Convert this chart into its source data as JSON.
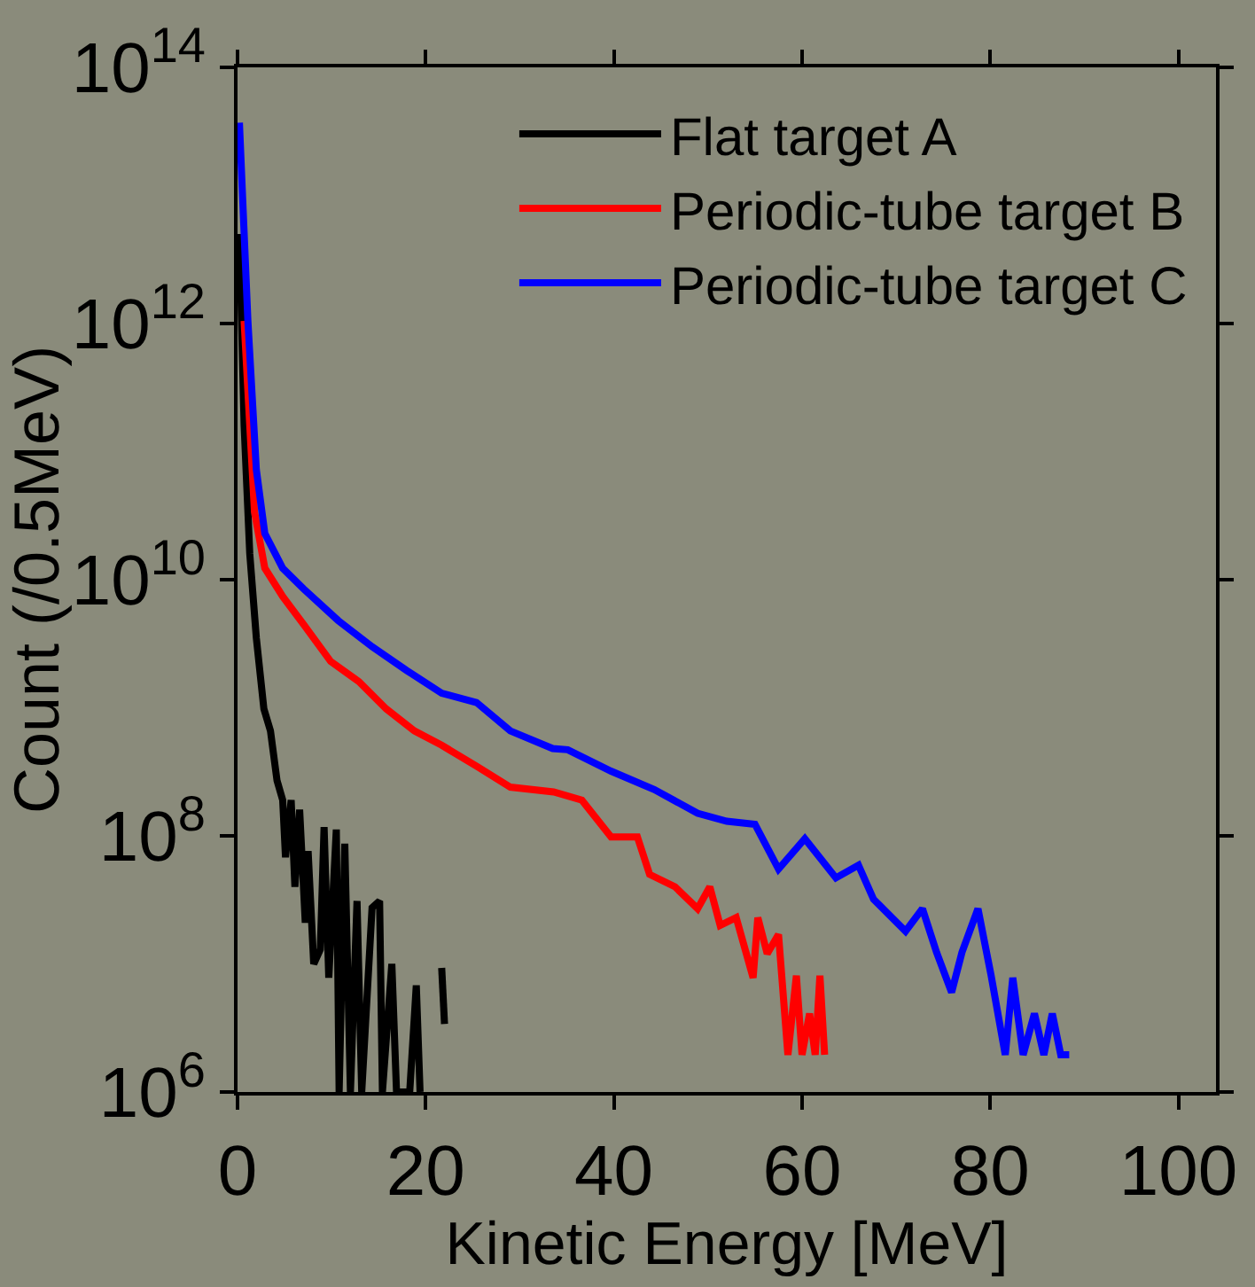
{
  "chart_data": {
    "type": "line",
    "xlabel": "Kinetic Energy [MeV]",
    "ylabel": "Count (/0.5MeV)",
    "xlim": [
      0,
      104
    ],
    "xticks": [
      0,
      20,
      40,
      60,
      80,
      100
    ],
    "ylim": [
      1000000.0,
      100000000000000.0
    ],
    "yticks": [
      {
        "value": 1000000.0,
        "label": "10$^{6}$"
      },
      {
        "value": 100000000.0,
        "label": "10$^{8}$"
      },
      {
        "value": 10000000000.0,
        "label": "10$^{10}$"
      },
      {
        "value": 1000000000000.0,
        "label": "10$^{12}$"
      },
      {
        "value": 100000000000000.0,
        "label": "10$^{14}$"
      }
    ],
    "log": "y",
    "grid": false,
    "legend": "top right",
    "marker": "none",
    "line_style": "solid",
    "series": [
      {
        "name": "Flat target A",
        "color": "#000000",
        "x": [
          0.2,
          0.7,
          1.3,
          2.0,
          2.8,
          3.5,
          4.2,
          4.8,
          5.1,
          5.7,
          6.1,
          6.6,
          7.2,
          7.5,
          8.1,
          8.8,
          9.2,
          9.7,
          10.5,
          10.8,
          11.4,
          12.0,
          12.7,
          13.2,
          14.3,
          15.1,
          15.4,
          16.4,
          16.9,
          18.3,
          19.0,
          19.4,
          20.5,
          21.7,
          22.0
        ],
        "values": [
          5000000000000.0,
          160000000000.0,
          16000000000.0,
          3500000000.0,
          980000000.0,
          660000000.0,
          270000000.0,
          190000000.0,
          68000000.0,
          190000000.0,
          40000000.0,
          160000000.0,
          21000000.0,
          76000000.0,
          10000000.0,
          13000000.0,
          117000000.0,
          7800000.0,
          112000000.0,
          1000000.0,
          87000000.0,
          1000000.0,
          31000000.0,
          1000000.0,
          27500000.0,
          31000000.0,
          1000000.0,
          10000000.0,
          1000000.0,
          1000000.0,
          6800000.0,
          1000000.0,
          null,
          9300000.0,
          3400000.0
        ]
      },
      {
        "name": "Periodic-tube target B",
        "color": "#ff0000",
        "x": [
          0.7,
          1.8,
          2.9,
          4.8,
          7.0,
          9.9,
          12.9,
          15.8,
          18.8,
          21.7,
          25.4,
          29.0,
          33.6,
          36.6,
          39.7,
          42.5,
          43.8,
          46.5,
          48.9,
          50.2,
          51.3,
          53.0,
          54.8,
          55.3,
          56.3,
          57.5,
          58.5,
          59.4,
          60.0,
          60.8,
          61.4,
          61.9,
          62.4
        ],
        "values": [
          1050000000000.0,
          34000000000.0,
          12300000000.0,
          7400000000.0,
          4500000000.0,
          2300000000.0,
          1600000000.0,
          980000000.0,
          660000000.0,
          510000000.0,
          350000000.0,
          240000000.0,
          220000000.0,
          190000000.0,
          98000000.0,
          98000000.0,
          50000000.0,
          40000000.0,
          27000000.0,
          40000000.0,
          20000000.0,
          23000000.0,
          7800000.0,
          23000000.0,
          12000000.0,
          17000000.0,
          1950000.0,
          8100000.0,
          1950000.0,
          4100000.0,
          1950000.0,
          8100000.0,
          1950000.0
        ]
      },
      {
        "name": "Periodic-tube target C",
        "color": "#0000ff",
        "x": [
          0.2,
          1.1,
          2.0,
          2.9,
          4.8,
          7.0,
          10.7,
          14.3,
          18.0,
          21.7,
          25.4,
          29.0,
          33.5,
          35.1,
          39.7,
          44.3,
          48.9,
          52.0,
          55.0,
          57.5,
          60.3,
          63.6,
          66.0,
          67.6,
          71.0,
          72.8,
          74.3,
          75.9,
          77.0,
          78.7,
          80.1,
          81.6,
          82.4,
          83.5,
          84.7,
          85.7,
          86.6,
          87.5,
          88.4
        ],
        "values": [
          37000000000000.0,
          1050000000000.0,
          72000000000.0,
          23000000000.0,
          12300000000.0,
          8500000000.0,
          4800000000.0,
          3000000000.0,
          1950000000.0,
          1300000000.0,
          1100000000.0,
          660000000.0,
          480000000.0,
          470000000.0,
          320000000.0,
          230000000.0,
          150000000.0,
          130000000.0,
          123000000.0,
          55000000.0,
          95000000.0,
          47000000.0,
          59000000.0,
          32000000.0,
          18000000.0,
          27000000.0,
          12300000.0,
          6000000.0,
          12300000.0,
          27000000.0,
          8100000.0,
          1950000.0,
          7800000.0,
          1950000.0,
          4100000.0,
          1950000.0,
          4100000.0,
          1950000.0,
          1950000.0
        ]
      }
    ]
  }
}
